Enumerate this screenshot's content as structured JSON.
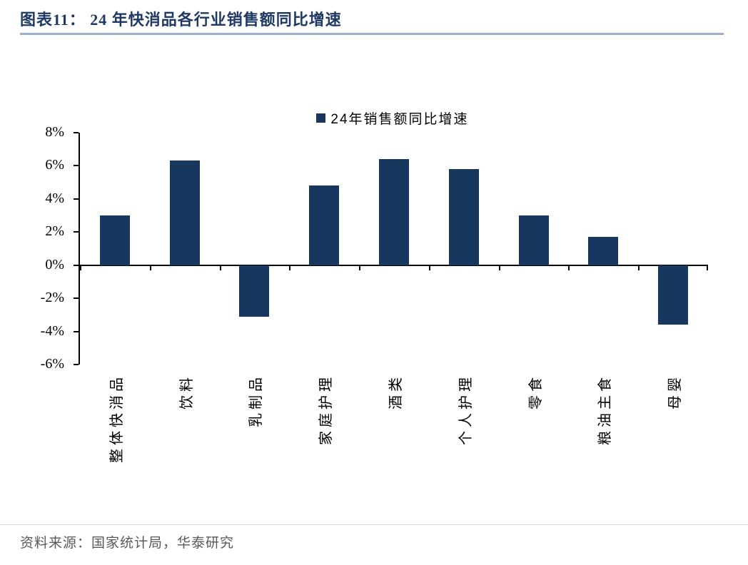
{
  "title": "图表11： 24 年快消品各行业销售额同比增速",
  "legend": {
    "label": "24年销售额同比增速"
  },
  "source": "资料来源：国家统计局，华泰研究",
  "colors": {
    "bar": "#17375E",
    "title_text": "#1F3864",
    "title_divider": "#9FADCB",
    "axis": "#000000",
    "source_text": "#595959"
  },
  "chart_data": {
    "type": "bar",
    "title": "24 年快消品各行业销售额同比增速",
    "series_name": "24年销售额同比增速",
    "categories": [
      "整体快消品",
      "饮料",
      "乳制品",
      "家庭护理",
      "酒类",
      "个人护理",
      "零食",
      "粮油主食",
      "母婴"
    ],
    "values": [
      3.0,
      6.3,
      -3.1,
      4.8,
      6.4,
      5.8,
      3.0,
      1.7,
      -3.6
    ],
    "unit": "%",
    "ylim": [
      -6,
      8
    ],
    "ytick_step": 2,
    "ytick_labels": [
      "8%",
      "6%",
      "4%",
      "2%",
      "0%",
      "-2%",
      "-4%",
      "-6%"
    ],
    "grid": false,
    "legend_position": "top-center"
  }
}
